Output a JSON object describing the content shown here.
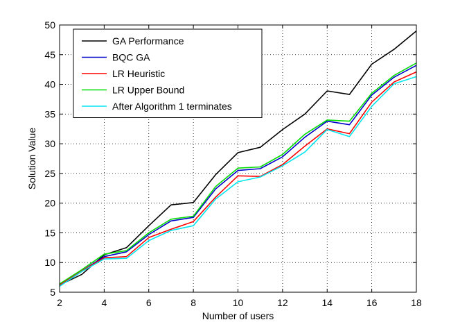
{
  "chart_data": {
    "type": "line",
    "title": "",
    "xlabel": "Number of users",
    "ylabel": "Solution Value",
    "xlim": [
      2,
      18
    ],
    "ylim": [
      5,
      50
    ],
    "xticks": [
      2,
      4,
      6,
      8,
      10,
      12,
      14,
      16,
      18
    ],
    "yticks": [
      5,
      10,
      15,
      20,
      25,
      30,
      35,
      40,
      45,
      50
    ],
    "grid": true,
    "legend_position": "top-left",
    "x": [
      2,
      3,
      4,
      5,
      6,
      7,
      8,
      9,
      10,
      11,
      12,
      13,
      14,
      15,
      16,
      17,
      18
    ],
    "series": [
      {
        "name": "GA Performance",
        "color": "#000000",
        "values": [
          6.2,
          8.0,
          11.3,
          12.5,
          16.2,
          19.7,
          20.1,
          24.8,
          28.5,
          29.4,
          32.4,
          35.0,
          38.9,
          38.3,
          43.4,
          45.9,
          49.0
        ]
      },
      {
        "name": "BQC GA",
        "color": "#0000cc",
        "values": [
          6.2,
          8.6,
          11.0,
          11.8,
          14.7,
          17.0,
          17.6,
          22.4,
          25.5,
          25.8,
          27.8,
          31.1,
          33.8,
          33.2,
          38.2,
          41.2,
          43.2
        ]
      },
      {
        "name": "LR Heuristic",
        "color": "#ff0000",
        "values": [
          6.2,
          8.6,
          10.8,
          11.0,
          14.2,
          15.6,
          16.9,
          21.0,
          24.6,
          24.5,
          26.5,
          29.6,
          32.5,
          31.7,
          37.0,
          40.4,
          42.1
        ]
      },
      {
        "name": "LR Upper Bound",
        "color": "#00dd00",
        "values": [
          6.4,
          8.8,
          11.4,
          12.0,
          15.0,
          17.3,
          17.8,
          22.8,
          25.9,
          26.1,
          28.2,
          31.6,
          34.0,
          33.8,
          38.5,
          41.5,
          43.6
        ]
      },
      {
        "name": "After Algorithm 1 terminates",
        "color": "#00e5ee",
        "values": [
          6.0,
          8.5,
          10.6,
          10.7,
          13.7,
          15.4,
          16.2,
          20.7,
          23.6,
          24.4,
          26.3,
          28.6,
          32.4,
          31.2,
          36.3,
          40.1,
          41.3
        ]
      }
    ]
  }
}
